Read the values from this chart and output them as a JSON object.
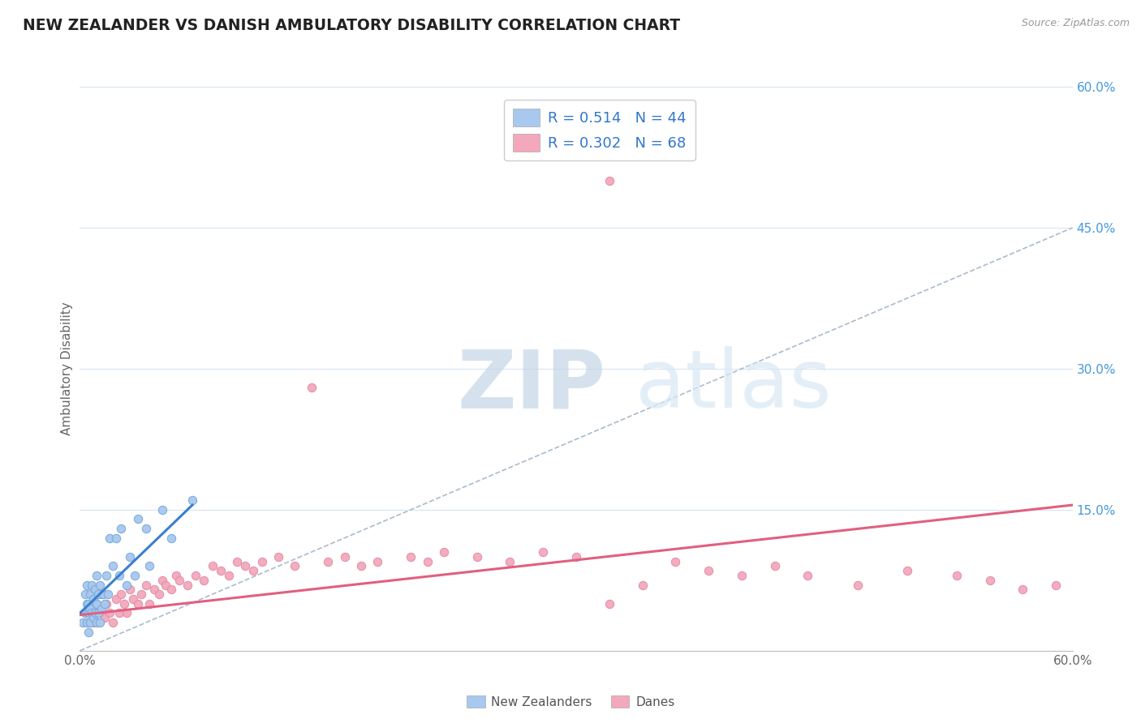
{
  "title": "NEW ZEALANDER VS DANISH AMBULATORY DISABILITY CORRELATION CHART",
  "source": "Source: ZipAtlas.com",
  "ylabel": "Ambulatory Disability",
  "xlim": [
    0.0,
    0.6
  ],
  "ylim": [
    0.0,
    0.6
  ],
  "nz_R": 0.514,
  "nz_N": 44,
  "dane_R": 0.302,
  "dane_N": 68,
  "nz_color": "#A8C8F0",
  "dane_color": "#F4A8BC",
  "nz_line_color": "#3A7FD0",
  "dane_line_color": "#E06080",
  "ref_line_color": "#AABBCC",
  "legend_label_nz": "New Zealanders",
  "legend_label_danes": "Danes",
  "background_color": "#FFFFFF",
  "grid_color": "#D8E4F0",
  "title_color": "#222222",
  "nz_trend_x": [
    0.0,
    0.068
  ],
  "nz_trend_y": [
    0.04,
    0.155
  ],
  "dane_trend_x": [
    0.0,
    0.6
  ],
  "dane_trend_y": [
    0.038,
    0.155
  ],
  "ref_line_x": [
    0.0,
    0.6
  ],
  "ref_line_y": [
    0.0,
    0.45
  ],
  "nz_points_x": [
    0.002,
    0.003,
    0.003,
    0.004,
    0.004,
    0.004,
    0.005,
    0.005,
    0.005,
    0.006,
    0.006,
    0.006,
    0.007,
    0.007,
    0.008,
    0.008,
    0.009,
    0.009,
    0.01,
    0.01,
    0.01,
    0.011,
    0.011,
    0.012,
    0.012,
    0.013,
    0.014,
    0.015,
    0.016,
    0.017,
    0.018,
    0.02,
    0.022,
    0.024,
    0.025,
    0.028,
    0.03,
    0.033,
    0.035,
    0.04,
    0.042,
    0.05,
    0.055,
    0.068
  ],
  "nz_points_y": [
    0.03,
    0.04,
    0.06,
    0.03,
    0.05,
    0.07,
    0.02,
    0.04,
    0.05,
    0.03,
    0.045,
    0.06,
    0.04,
    0.07,
    0.035,
    0.055,
    0.04,
    0.065,
    0.03,
    0.05,
    0.08,
    0.04,
    0.06,
    0.03,
    0.07,
    0.045,
    0.06,
    0.05,
    0.08,
    0.06,
    0.12,
    0.09,
    0.12,
    0.08,
    0.13,
    0.07,
    0.1,
    0.08,
    0.14,
    0.13,
    0.09,
    0.15,
    0.12,
    0.16
  ],
  "dane_points_x": [
    0.003,
    0.005,
    0.006,
    0.007,
    0.008,
    0.01,
    0.012,
    0.013,
    0.015,
    0.016,
    0.018,
    0.02,
    0.022,
    0.024,
    0.025,
    0.027,
    0.028,
    0.03,
    0.032,
    0.035,
    0.037,
    0.04,
    0.042,
    0.045,
    0.048,
    0.05,
    0.052,
    0.055,
    0.058,
    0.06,
    0.065,
    0.07,
    0.075,
    0.08,
    0.085,
    0.09,
    0.095,
    0.1,
    0.105,
    0.11,
    0.12,
    0.13,
    0.14,
    0.15,
    0.16,
    0.17,
    0.18,
    0.2,
    0.21,
    0.22,
    0.24,
    0.26,
    0.28,
    0.3,
    0.32,
    0.34,
    0.36,
    0.38,
    0.4,
    0.42,
    0.44,
    0.47,
    0.5,
    0.53,
    0.55,
    0.57,
    0.59,
    0.32
  ],
  "dane_points_y": [
    0.04,
    0.03,
    0.05,
    0.04,
    0.03,
    0.05,
    0.04,
    0.06,
    0.035,
    0.05,
    0.04,
    0.03,
    0.055,
    0.04,
    0.06,
    0.05,
    0.04,
    0.065,
    0.055,
    0.05,
    0.06,
    0.07,
    0.05,
    0.065,
    0.06,
    0.075,
    0.07,
    0.065,
    0.08,
    0.075,
    0.07,
    0.08,
    0.075,
    0.09,
    0.085,
    0.08,
    0.095,
    0.09,
    0.085,
    0.095,
    0.1,
    0.09,
    0.28,
    0.095,
    0.1,
    0.09,
    0.095,
    0.1,
    0.095,
    0.105,
    0.1,
    0.095,
    0.105,
    0.1,
    0.5,
    0.07,
    0.095,
    0.085,
    0.08,
    0.09,
    0.08,
    0.07,
    0.085,
    0.08,
    0.075,
    0.065,
    0.07,
    0.05
  ]
}
